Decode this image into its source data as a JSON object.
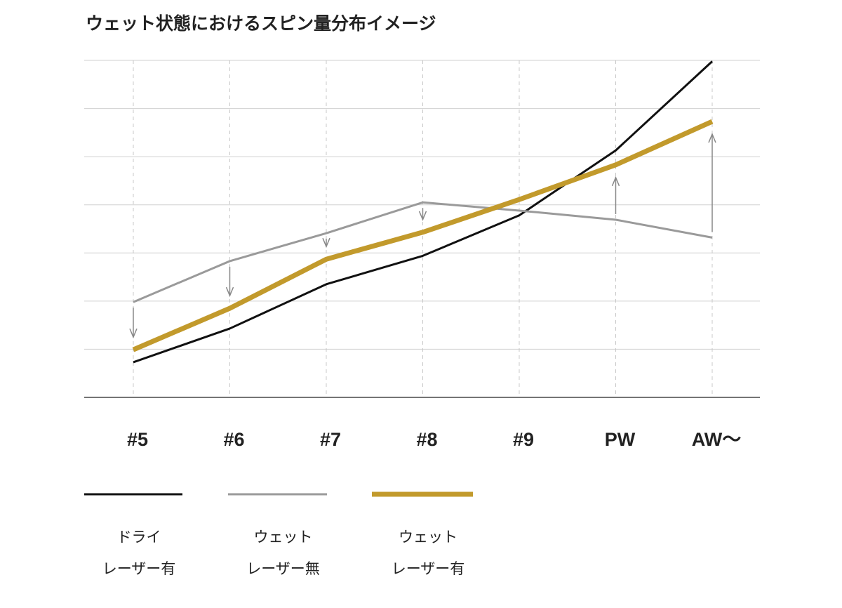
{
  "chart_data": {
    "type": "line",
    "title": "ウェット状態におけるスピン量分布イメージ",
    "xlabel": "",
    "ylabel": "",
    "categories": [
      "#5",
      "#6",
      "#7",
      "#8",
      "#9",
      "PW",
      "AW〜"
    ],
    "ylim": [
      0,
      7
    ],
    "grid": true,
    "legend_placement": "bottom",
    "series": [
      {
        "name": "ドライ レーザー有",
        "label_lines": [
          "ドライ",
          "レーザー有"
        ],
        "color": "#111111",
        "values": [
          0.73,
          1.43,
          2.35,
          2.94,
          3.78,
          5.13,
          6.98
        ]
      },
      {
        "name": "ウェット レーザー無",
        "label_lines": [
          "ウェット",
          "レーザー無"
        ],
        "color": "#9a9a9a",
        "values": [
          1.98,
          2.83,
          3.41,
          4.05,
          3.88,
          3.69,
          3.32
        ]
      },
      {
        "name": "ウェット レーザー有",
        "label_lines": [
          "ウェット",
          "レーザー有"
        ],
        "color": "#c29a2c",
        "values": [
          0.99,
          1.85,
          2.87,
          3.43,
          4.11,
          4.83,
          5.73
        ]
      }
    ],
    "annotations": {
      "arrows_from_series": 1,
      "arrows_to_series": 2,
      "arrow_categories": [
        "#5",
        "#6",
        "#7",
        "#8",
        "PW",
        "AW〜"
      ],
      "arrow_color": "#888888"
    }
  }
}
